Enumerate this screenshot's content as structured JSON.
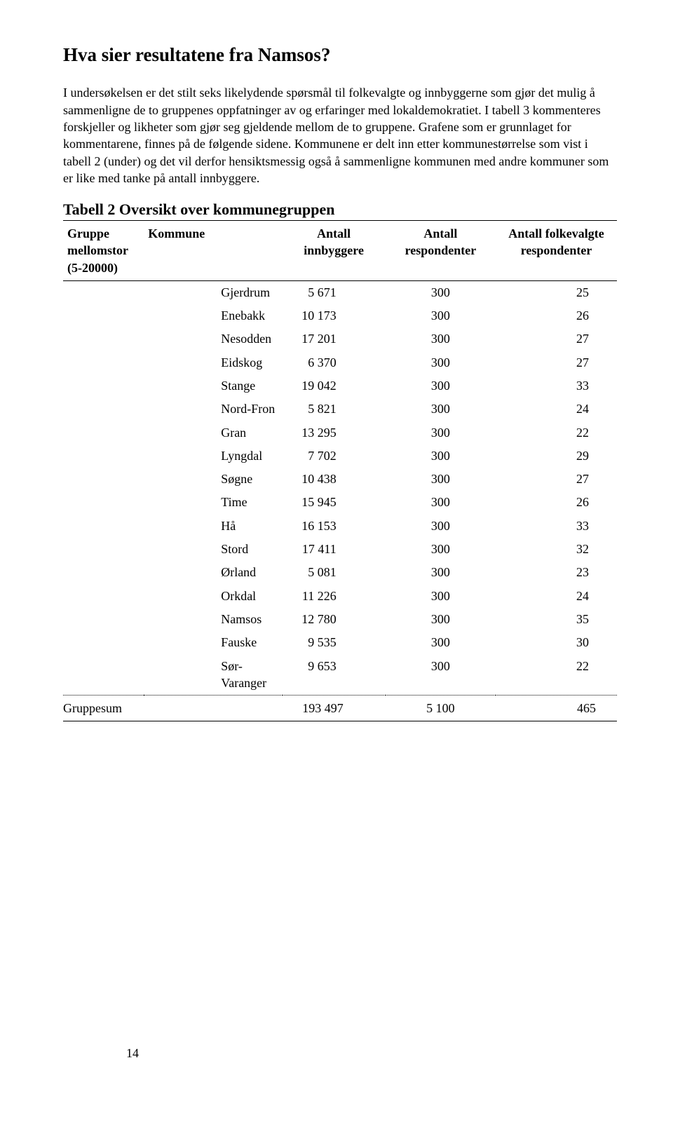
{
  "heading": "Hva sier resultatene fra Namsos?",
  "paragraph": "I undersøkelsen er det stilt seks likelydende spørsmål til folkevalgte og innbyggerne som gjør det mulig å sammenligne de to gruppenes oppfatninger av og erfaringer med lokaldemokratiet. I tabell 3 kommenteres forskjeller og likheter som gjør seg gjeldende mellom de to gruppene. Grafene som er grunnlaget for kommentarene, finnes på de følgende sidene. Kommunene er delt inn etter kommunestørrelse som vist i tabell 2 (under) og det vil derfor hensiktsmessig også å sammenligne kommunen med andre kommuner som er like med tanke på antall innbyggere.",
  "table": {
    "title": "Tabell 2 Oversikt over kommunegruppen",
    "headers": {
      "gruppe": "Gruppe mellomstor (5-20000)",
      "kommune": "Kommune",
      "innbyggere": "Antall innbyggere",
      "respondenter": "Antall respondenter",
      "folkevalgte": "Antall folkevalgte respondenter"
    },
    "rows": [
      {
        "kommune": "Gjerdrum",
        "innbyggere": "5 671",
        "resp": "300",
        "fresp": "25"
      },
      {
        "kommune": "Enebakk",
        "innbyggere": "10 173",
        "resp": "300",
        "fresp": "26"
      },
      {
        "kommune": "Nesodden",
        "innbyggere": "17 201",
        "resp": "300",
        "fresp": "27"
      },
      {
        "kommune": "Eidskog",
        "innbyggere": "6 370",
        "resp": "300",
        "fresp": "27"
      },
      {
        "kommune": "Stange",
        "innbyggere": "19 042",
        "resp": "300",
        "fresp": "33"
      },
      {
        "kommune": "Nord-Fron",
        "innbyggere": "5 821",
        "resp": "300",
        "fresp": "24"
      },
      {
        "kommune": "Gran",
        "innbyggere": "13 295",
        "resp": "300",
        "fresp": "22"
      },
      {
        "kommune": "Lyngdal",
        "innbyggere": "7 702",
        "resp": "300",
        "fresp": "29"
      },
      {
        "kommune": "Søgne",
        "innbyggere": "10 438",
        "resp": "300",
        "fresp": "27"
      },
      {
        "kommune": "Time",
        "innbyggere": "15 945",
        "resp": "300",
        "fresp": "26"
      },
      {
        "kommune": "Hå",
        "innbyggere": "16 153",
        "resp": "300",
        "fresp": "33"
      },
      {
        "kommune": "Stord",
        "innbyggere": "17 411",
        "resp": "300",
        "fresp": "32"
      },
      {
        "kommune": "Ørland",
        "innbyggere": "5 081",
        "resp": "300",
        "fresp": "23"
      },
      {
        "kommune": "Orkdal",
        "innbyggere": "11 226",
        "resp": "300",
        "fresp": "24"
      },
      {
        "kommune": "Namsos",
        "innbyggere": "12 780",
        "resp": "300",
        "fresp": "35"
      },
      {
        "kommune": "Fauske",
        "innbyggere": "9 535",
        "resp": "300",
        "fresp": "30"
      },
      {
        "kommune": "Sør-Varanger",
        "innbyggere": "9 653",
        "resp": "300",
        "fresp": "22"
      }
    ],
    "sum": {
      "label": "Gruppesum",
      "innbyggere": "193 497",
      "resp": "5 100",
      "fresp": "465"
    }
  },
  "page_number": "14"
}
